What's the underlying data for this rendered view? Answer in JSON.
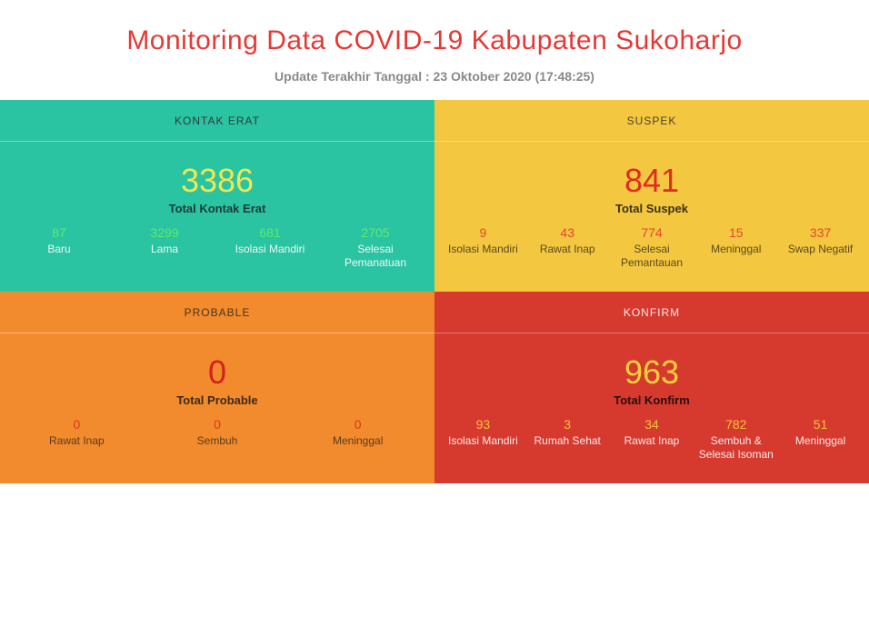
{
  "header": {
    "title": "Monitoring Data COVID-19 Kabupaten Sukoharjo",
    "title_color": "#e53935",
    "subtitle": "Update Terakhir Tanggal : 23 Oktober 2020 (17:48:25)",
    "subtitle_color": "#8a8a8a"
  },
  "panels": {
    "kontak_erat": {
      "header": "KONTAK ERAT",
      "bg": "#2bc4a3",
      "header_text_color": "#2f3a3a",
      "total_value": "3386",
      "total_value_color": "#f4e64b",
      "total_label": "Total Kontak Erat",
      "total_label_color": "#1f3b35",
      "stat_val_color": "#5fe86a",
      "stat_lbl_color": "#eafaf6",
      "stats": [
        {
          "value": "87",
          "label": "Baru"
        },
        {
          "value": "3299",
          "label": "Lama"
        },
        {
          "value": "681",
          "label": "Isolasi Mandiri"
        },
        {
          "value": "2705",
          "label": "Selesai Pemanatuan"
        }
      ]
    },
    "suspek": {
      "header": "SUSPEK",
      "bg": "#f3c73f",
      "header_text_color": "#4a4330",
      "total_value": "841",
      "total_value_color": "#e22b1f",
      "total_label": "Total Suspek",
      "total_label_color": "#3a3118",
      "stat_val_color": "#e8452e",
      "stat_lbl_color": "#5a4a1f",
      "stats": [
        {
          "value": "9",
          "label": "Isolasi Mandiri"
        },
        {
          "value": "43",
          "label": "Rawat Inap"
        },
        {
          "value": "774",
          "label": "Selesai Pemantauan"
        },
        {
          "value": "15",
          "label": "Meninggal"
        },
        {
          "value": "337",
          "label": "Swap Negatif"
        }
      ]
    },
    "probable": {
      "header": "PROBABLE",
      "bg": "#f28a2e",
      "header_text_color": "#4a3620",
      "total_value": "0",
      "total_value_color": "#d61f1f",
      "total_label": "Total Probable",
      "total_label_color": "#3f2a14",
      "stat_val_color": "#d63a1f",
      "stat_lbl_color": "#5a3d1d",
      "stats": [
        {
          "value": "0",
          "label": "Rawat Inap"
        },
        {
          "value": "0",
          "label": "Sembuh"
        },
        {
          "value": "0",
          "label": "Meninggal"
        }
      ]
    },
    "konfirm": {
      "header": "KONFIRM",
      "bg": "#d63a2f",
      "header_text_color": "#f7e9e7",
      "total_value": "963",
      "total_value_color": "#f5d23b",
      "total_label": "Total Konfirm",
      "total_label_color": "#2a0d0b",
      "stat_val_color": "#f6c33a",
      "stat_lbl_color": "#f7e9e7",
      "stats": [
        {
          "value": "93",
          "label": "Isolasi Mandiri"
        },
        {
          "value": "3",
          "label": "Rumah Sehat"
        },
        {
          "value": "34",
          "label": "Rawat Inap"
        },
        {
          "value": "782",
          "label": "Sembuh & Selesai Isoman"
        },
        {
          "value": "51",
          "label": "Meninggal"
        }
      ]
    }
  }
}
